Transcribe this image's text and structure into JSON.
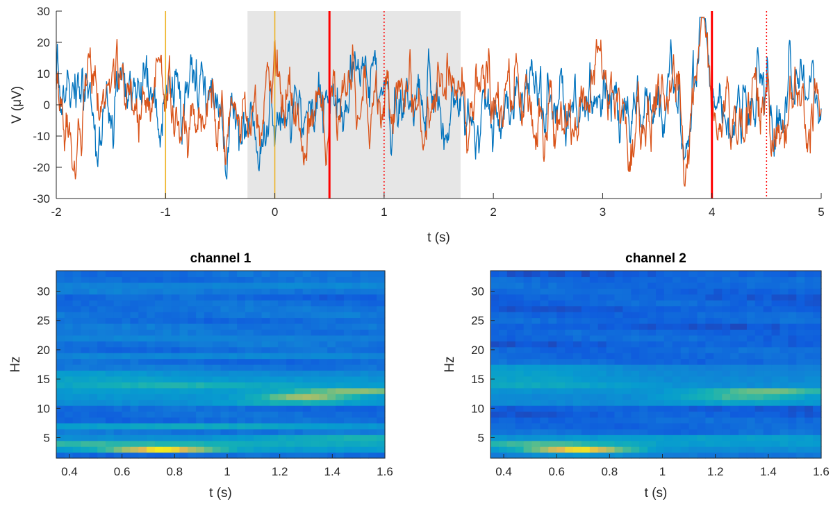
{
  "chart_data": [
    {
      "type": "line",
      "xlabel": "t (s)",
      "ylabel": "V (μV)",
      "xlim": [
        -2,
        5
      ],
      "ylim": [
        -30,
        30
      ],
      "xticks": [
        "-2",
        "-1",
        "0",
        "1",
        "2",
        "3",
        "4",
        "5"
      ],
      "yticks": [
        "-30",
        "-20",
        "-10",
        "0",
        "10",
        "20",
        "30"
      ],
      "grid": false,
      "shaded_region": {
        "x": [
          -0.25,
          1.7
        ],
        "color": "#e6e6e6"
      },
      "event_lines": [
        {
          "x": -1,
          "color": "#edb120",
          "style": "solid"
        },
        {
          "x": 0,
          "color": "#edb120",
          "style": "solid"
        },
        {
          "x": 0.5,
          "color": "#ff0000",
          "style": "solid"
        },
        {
          "x": 1,
          "color": "#ff0000",
          "style": "dotted"
        },
        {
          "x": 4,
          "color": "#ff0000",
          "style": "solid"
        },
        {
          "x": 4.5,
          "color": "#ff0000",
          "style": "dotted"
        }
      ],
      "series": [
        {
          "color": "#0072bd"
        },
        {
          "color": "#d95319"
        }
      ]
    },
    {
      "type": "heatmap",
      "title": "channel 1",
      "xlabel": "t (s)",
      "ylabel": "Hz",
      "xlim": [
        0.35,
        1.6
      ],
      "ylim": [
        1.5,
        33.5
      ],
      "xticks": [
        "0.4",
        "0.6",
        "0.8",
        "1",
        "1.2",
        "1.4",
        "1.6"
      ],
      "yticks": [
        "5",
        "10",
        "15",
        "20",
        "25",
        "30"
      ],
      "bands": [
        {
          "f": 3,
          "peak": 0.95,
          "center": 0.75,
          "width": 0.2,
          "floor": 0.38
        },
        {
          "f": 4,
          "peak": 0.55,
          "center": 0.5,
          "width": 0.5,
          "floor": 0.45
        },
        {
          "f": 5,
          "peak": 0.5,
          "center": 1.5,
          "width": 0.4,
          "floor": 0.32
        },
        {
          "f": 7,
          "peak": 0.45,
          "center": 0.9,
          "width": 0.6,
          "floor": 0.3
        },
        {
          "f": 11,
          "peak": 0.5,
          "center": 1.25,
          "width": 0.25,
          "floor": 0.32
        },
        {
          "f": 12,
          "peak": 0.75,
          "center": 1.3,
          "width": 0.18,
          "floor": 0.35
        },
        {
          "f": 13,
          "peak": 0.72,
          "center": 1.5,
          "width": 0.25,
          "floor": 0.38
        },
        {
          "f": 14,
          "peak": 0.52,
          "center": 0.8,
          "width": 0.4,
          "floor": 0.38
        },
        {
          "f": 15,
          "peak": 0.42,
          "center": 0.5,
          "width": 0.4,
          "floor": 0.35
        },
        {
          "f": 16,
          "peak": 0.38,
          "center": 0.45,
          "width": 0.4,
          "floor": 0.3
        },
        {
          "f": 19,
          "peak": 0.3,
          "center": 1.0,
          "width": 0.8,
          "floor": 0.25
        },
        {
          "f": 22,
          "peak": 0.28,
          "center": 0.7,
          "width": 0.6,
          "floor": 0.24
        },
        {
          "f": 31,
          "peak": 0.3,
          "center": 1.3,
          "width": 0.5,
          "floor": 0.26
        }
      ]
    },
    {
      "type": "heatmap",
      "title": "channel 2",
      "xlabel": "t (s)",
      "ylabel": "Hz",
      "xlim": [
        0.35,
        1.6
      ],
      "ylim": [
        1.5,
        33.5
      ],
      "xticks": [
        "0.4",
        "0.6",
        "0.8",
        "1",
        "1.2",
        "1.4",
        "1.6"
      ],
      "yticks": [
        "5",
        "10",
        "15",
        "20",
        "25",
        "30"
      ],
      "bands": [
        {
          "f": 2,
          "peak": 0.35,
          "center": 0.7,
          "width": 0.3,
          "floor": 0.22
        },
        {
          "f": 3,
          "peak": 0.95,
          "center": 0.68,
          "width": 0.2,
          "floor": 0.32
        },
        {
          "f": 4,
          "peak": 0.6,
          "center": 0.55,
          "width": 0.3,
          "floor": 0.38
        },
        {
          "f": 5,
          "peak": 0.4,
          "center": 1.2,
          "width": 0.6,
          "floor": 0.33
        },
        {
          "f": 11,
          "peak": 0.42,
          "center": 1.3,
          "width": 0.3,
          "floor": 0.3
        },
        {
          "f": 12,
          "peak": 0.58,
          "center": 1.3,
          "width": 0.25,
          "floor": 0.3
        },
        {
          "f": 13,
          "peak": 0.66,
          "center": 1.4,
          "width": 0.25,
          "floor": 0.34
        },
        {
          "f": 14,
          "peak": 0.45,
          "center": 0.5,
          "width": 0.4,
          "floor": 0.32
        },
        {
          "f": 15,
          "peak": 0.42,
          "center": 0.45,
          "width": 0.4,
          "floor": 0.3
        },
        {
          "f": 16,
          "peak": 0.4,
          "center": 0.45,
          "width": 0.4,
          "floor": 0.28
        },
        {
          "f": 17,
          "peak": 0.38,
          "center": 0.45,
          "width": 0.4,
          "floor": 0.26
        }
      ]
    }
  ]
}
